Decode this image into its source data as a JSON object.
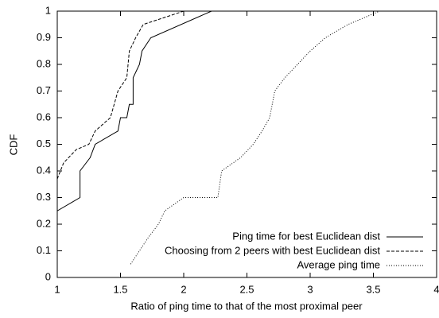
{
  "chart_data": {
    "type": "line",
    "xlabel": "Ratio of ping time to that of the most proximal peer",
    "ylabel": "CDF",
    "xlim": [
      1,
      4
    ],
    "ylim": [
      0,
      1
    ],
    "xticks": [
      1,
      1.5,
      2,
      2.5,
      3,
      3.5,
      4
    ],
    "yticks": [
      0,
      0.1,
      0.2,
      0.3,
      0.4,
      0.5,
      0.6,
      0.7,
      0.8,
      0.9,
      1
    ],
    "legend": "lower right",
    "series": [
      {
        "name": "Ping time for best Euclidean dist",
        "color": "#000000",
        "dash": "none",
        "x": [
          1,
          1.18,
          1.18,
          1.26,
          1.3,
          1.48,
          1.5,
          1.55,
          1.57,
          1.6,
          1.6,
          1.65,
          1.67,
          1.74,
          2.22
        ],
        "values": [
          0.25,
          0.3,
          0.4,
          0.45,
          0.5,
          0.55,
          0.6,
          0.6,
          0.65,
          0.65,
          0.75,
          0.8,
          0.85,
          0.9,
          1
        ]
      },
      {
        "name": "Choosing from 2 peers with best Euclidean dist",
        "color": "#000000",
        "dash": "4,2",
        "x": [
          1,
          1.05,
          1.15,
          1.25,
          1.3,
          1.42,
          1.48,
          1.55,
          1.57,
          1.62,
          1.68,
          2.0
        ],
        "values": [
          0.37,
          0.43,
          0.48,
          0.5,
          0.55,
          0.6,
          0.7,
          0.75,
          0.85,
          0.9,
          0.95,
          1
        ]
      },
      {
        "name": "Average ping time",
        "color": "#000000",
        "dash": "1,2",
        "x": [
          1.58,
          1.65,
          1.72,
          1.8,
          1.85,
          2.0,
          2.27,
          2.3,
          2.45,
          2.55,
          2.62,
          2.68,
          2.72,
          2.8,
          2.9,
          3.0,
          3.12,
          3.3,
          3.55
        ],
        "values": [
          0.05,
          0.1,
          0.15,
          0.2,
          0.25,
          0.3,
          0.3,
          0.4,
          0.45,
          0.5,
          0.55,
          0.6,
          0.7,
          0.75,
          0.8,
          0.85,
          0.9,
          0.95,
          1
        ]
      }
    ]
  }
}
